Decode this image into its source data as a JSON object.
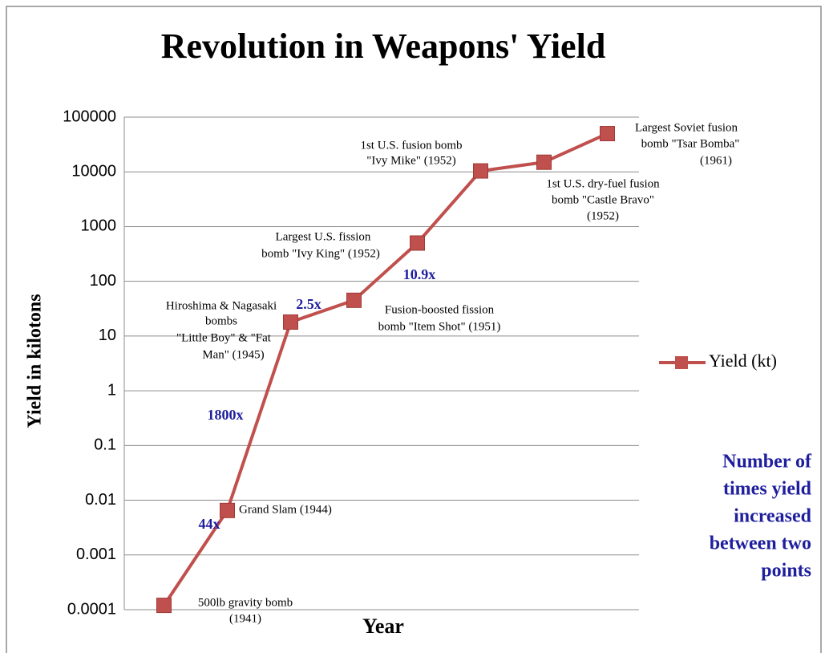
{
  "chart_data": {
    "type": "line",
    "title": "Revolution in Weapons' Yield",
    "x_label": "Year",
    "y_label": "Yield  in kilotons",
    "categories": [
      null,
      null,
      null,
      null,
      null,
      null,
      null,
      null
    ],
    "series": [
      {
        "name": "Yield (kt)",
        "color": "#c0504d",
        "values": [
          0.00012,
          0.0065,
          18,
          45,
          500,
          10400,
          15000,
          50000
        ]
      }
    ],
    "ylim": [
      0.0001,
      100000
    ],
    "yticks": [
      0.0001,
      0.001,
      0.01,
      0.1,
      1,
      10,
      100,
      1000,
      10000,
      100000
    ],
    "log_scale": true,
    "grid": true,
    "legend": "right",
    "annotations": [
      {
        "lines": [
          "500lb  gravity bomb",
          "(1941)"
        ]
      },
      {
        "lines": [
          "Grand Slam (1944)"
        ]
      },
      {
        "lines": [
          "Hiroshima & Nagasaki",
          "bombs",
          "\"Little Boy\"  & \"Fat",
          "Man\" (1945)"
        ]
      },
      {
        "lines": [
          "Fusion-boosted fission",
          "bomb \"Item Shot\" (1951)"
        ]
      },
      {
        "lines": [
          "Largest U.S. fission",
          "bomb \"Ivy King\" (1952)"
        ]
      },
      {
        "lines": [
          "1st U.S.  fusion bomb",
          "\"Ivy Mike\" (1952)"
        ]
      },
      {
        "lines": [
          "1st U.S. dry-fuel fusion",
          "bomb \"Castle Bravo\"",
          "(1952)"
        ]
      },
      {
        "lines": [
          "Largest Soviet  fusion",
          "bomb \"Tsar Bomba\"",
          "(1961)"
        ]
      }
    ],
    "ratio_labels": [
      "44x",
      "1800x",
      "2.5x",
      "10.9x"
    ],
    "ratio_color": "#1f1f9e",
    "note": [
      "Number of",
      "times yield",
      "increased",
      "between two",
      "points"
    ]
  }
}
